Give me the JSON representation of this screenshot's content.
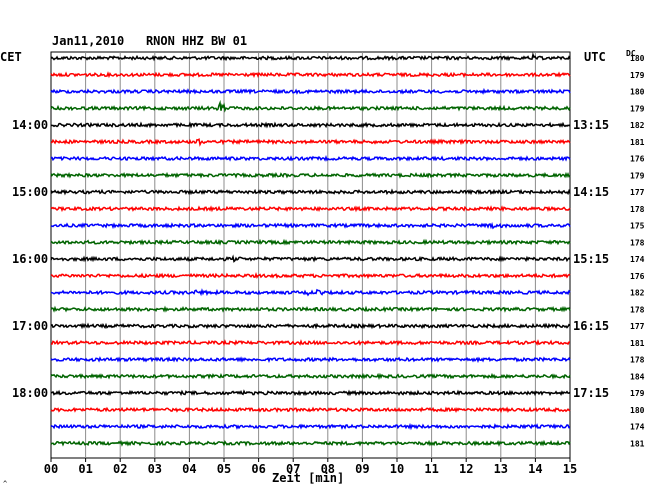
{
  "header": {
    "date": "Jan11,2010",
    "station": "RNON HHZ BW 01"
  },
  "left_zone_label": "CET",
  "right_zone_label": "UTC",
  "dc_label": "DC",
  "x_axis_label": "Zeit [min]",
  "corner_mark": "^",
  "colors": {
    "black": "#000000",
    "red": "#ff0000",
    "blue": "#0000ff",
    "green": "#006400",
    "grid": "#8c8c8c"
  },
  "chart_data": {
    "type": "line",
    "title": "Jan11,2010   RNON HHZ BW 01",
    "xlabel": "Zeit [min]",
    "ylabel": "",
    "xlim": [
      0,
      15
    ],
    "x_ticks": [
      "00",
      "01",
      "02",
      "03",
      "04",
      "05",
      "06",
      "07",
      "08",
      "09",
      "10",
      "11",
      "12",
      "13",
      "14",
      "15"
    ],
    "left_hour_labels": [
      "14:00",
      "15:00",
      "16:00",
      "17:00",
      "18:00"
    ],
    "right_hour_labels": [
      "13:15",
      "14:15",
      "15:15",
      "16:15",
      "17:15"
    ],
    "trace_colors": [
      "black",
      "red",
      "blue",
      "green"
    ],
    "dc_values": [
      "180",
      "179",
      "180",
      "179",
      "182",
      "181",
      "176",
      "179",
      "177",
      "178",
      "175",
      "178",
      "174",
      "176",
      "182",
      "178",
      "177",
      "181",
      "178",
      "184",
      "179",
      "180",
      "174",
      "181"
    ],
    "events": [
      {
        "trace": 0,
        "minute": 13.9,
        "amplitude": 0.4
      },
      {
        "trace": 3,
        "minute": 4.9,
        "amplitude": 0.9
      },
      {
        "trace": 5,
        "minute": 4.25,
        "amplitude": 0.5
      },
      {
        "trace": 10,
        "minute": 12.7,
        "amplitude": 1.0
      },
      {
        "trace": 12,
        "minute": 5.3,
        "amplitude": 0.5
      },
      {
        "trace": 14,
        "minute": 4.2,
        "amplitude": 0.6
      },
      {
        "trace": 14,
        "minute": 7.3,
        "amplitude": 0.5
      },
      {
        "trace": 14,
        "minute": 7.7,
        "amplitude": 0.5
      },
      {
        "trace": 20,
        "minute": 5.5,
        "amplitude": 0.3
      }
    ]
  }
}
